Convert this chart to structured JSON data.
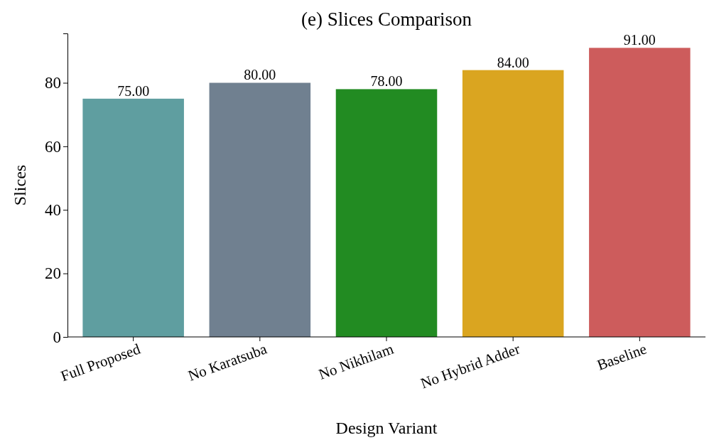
{
  "chart_data": {
    "type": "bar",
    "title": "(e) Slices Comparison",
    "xlabel": "Design Variant",
    "ylabel": "Slices",
    "categories": [
      "Full Proposed",
      "No Karatsuba",
      "No Nikhilam",
      "No Hybrid Adder",
      "Baseline"
    ],
    "values": [
      75,
      80,
      78,
      84,
      91
    ],
    "colors": [
      "#5f9ea0",
      "#708090",
      "#228b22",
      "#daa520",
      "#cd5c5c"
    ],
    "value_labels": [
      "75.00",
      "80.00",
      "78.00",
      "84.00",
      "91.00"
    ],
    "ylim": [
      0,
      95.55
    ],
    "yticks": [
      0,
      20,
      40,
      60,
      80
    ],
    "grid": false
  }
}
